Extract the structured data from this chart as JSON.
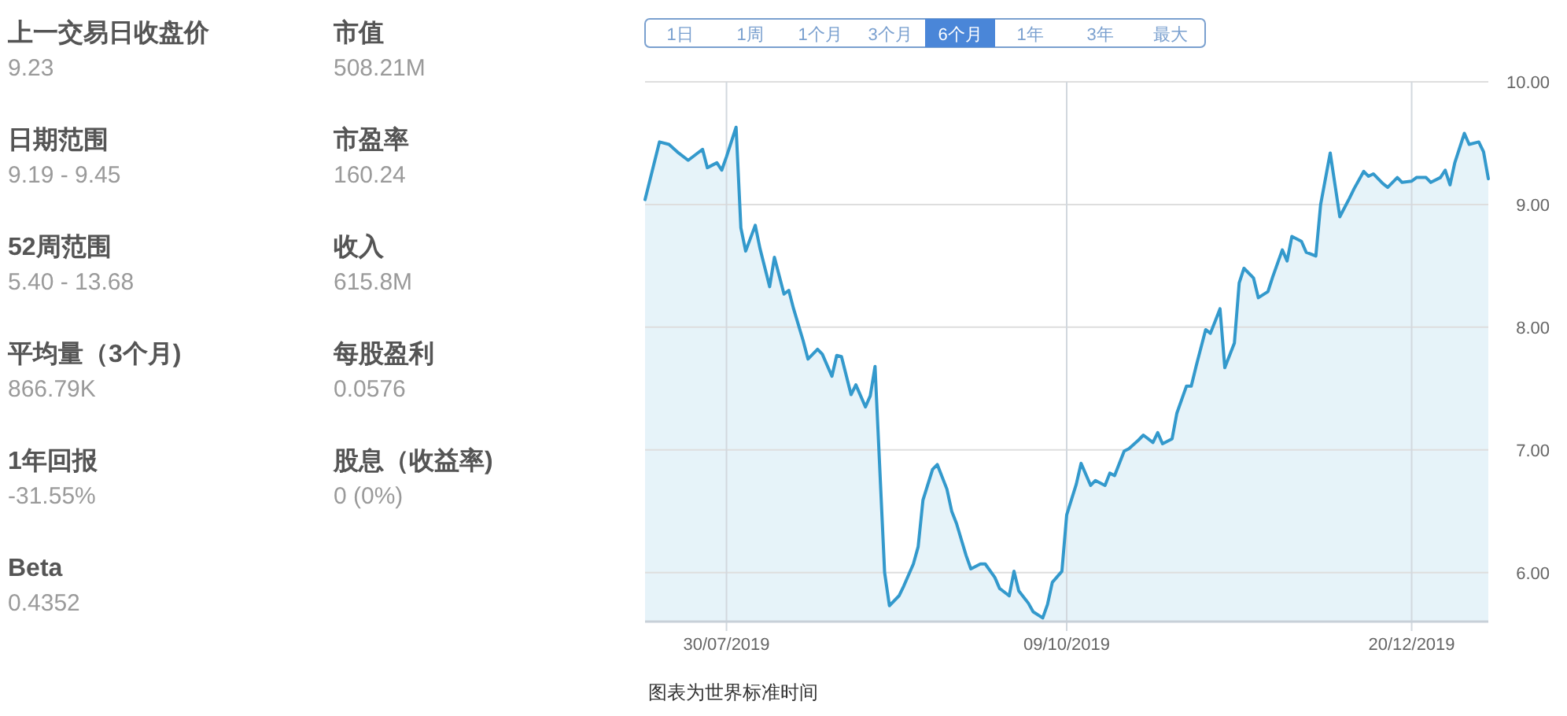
{
  "chart_data": [
    {
      "type": "other",
      "annotations": [
        "上一交易日收盘价",
        "9.23",
        "日期范围",
        "9.19 - 9.45",
        "52周范围",
        "5.40 - 13.68",
        "平均量（3个月)",
        "866.79K",
        "1年回报",
        "-31.55%",
        "Beta",
        "0.4352",
        "市值",
        "508.21M",
        "市盈率",
        "160.24",
        "收入",
        "615.8M",
        "每股盈利",
        "0.0576",
        "股息（收益率)",
        "0 (0%)"
      ]
    },
    {
      "type": "area",
      "grid": true,
      "x": [
        "2019-07-13",
        "2019-07-16",
        "2019-07-18",
        "2019-07-20",
        "2019-07-22",
        "2019-07-25",
        "2019-07-26",
        "2019-07-28",
        "2019-07-29",
        "2019-07-30",
        "2019-08-01",
        "2019-08-02",
        "2019-08-03",
        "2019-08-05",
        "2019-08-06",
        "2019-08-08",
        "2019-08-09",
        "2019-08-11",
        "2019-08-12",
        "2019-08-13",
        "2019-08-15",
        "2019-08-16",
        "2019-08-18",
        "2019-08-19",
        "2019-08-21",
        "2019-08-22",
        "2019-08-23",
        "2019-08-25",
        "2019-08-26",
        "2019-08-28",
        "2019-08-29",
        "2019-08-30",
        "2019-09-01",
        "2019-09-02",
        "2019-09-04",
        "2019-09-05",
        "2019-09-07",
        "2019-09-08",
        "2019-09-09",
        "2019-09-11",
        "2019-09-12",
        "2019-09-14",
        "2019-09-15",
        "2019-09-16",
        "2019-09-18",
        "2019-09-19",
        "2019-09-21",
        "2019-09-22",
        "2019-09-24",
        "2019-09-25",
        "2019-09-27",
        "2019-09-28",
        "2019-09-29",
        "2019-10-01",
        "2019-10-02",
        "2019-10-04",
        "2019-10-05",
        "2019-10-06",
        "2019-10-08",
        "2019-10-09",
        "2019-10-11",
        "2019-10-12",
        "2019-10-14",
        "2019-10-15",
        "2019-10-17",
        "2019-10-18",
        "2019-10-19",
        "2019-10-21",
        "2019-10-22",
        "2019-10-24",
        "2019-10-25",
        "2019-10-27",
        "2019-10-28",
        "2019-10-29",
        "2019-10-31",
        "2019-11-01",
        "2019-11-03",
        "2019-11-04",
        "2019-11-05",
        "2019-11-07",
        "2019-11-08",
        "2019-11-10",
        "2019-11-11",
        "2019-11-13",
        "2019-11-14",
        "2019-11-15",
        "2019-11-17",
        "2019-11-18",
        "2019-11-20",
        "2019-11-21",
        "2019-11-23",
        "2019-11-24",
        "2019-11-25",
        "2019-11-27",
        "2019-11-28",
        "2019-11-30",
        "2019-12-01",
        "2019-12-03",
        "2019-12-04",
        "2019-12-05",
        "2019-12-07",
        "2019-12-08",
        "2019-12-10",
        "2019-12-11",
        "2019-12-12",
        "2019-12-14",
        "2019-12-15",
        "2019-12-17",
        "2019-12-18",
        "2019-12-20",
        "2019-12-21",
        "2019-12-23",
        "2019-12-24",
        "2019-12-26",
        "2019-12-27",
        "2019-12-28",
        "2019-12-29",
        "2019-12-31",
        "2020-01-01",
        "2020-01-03",
        "2020-01-04",
        "2020-01-05"
      ],
      "series": [
        {
          "color": "#3399cc",
          "values": [
            9.04,
            9.51,
            9.49,
            9.42,
            9.36,
            9.45,
            9.3,
            9.34,
            9.28,
            9.39,
            9.63,
            8.81,
            8.62,
            8.83,
            8.64,
            8.33,
            8.57,
            8.27,
            8.3,
            8.15,
            7.89,
            7.74,
            7.82,
            7.78,
            7.6,
            7.77,
            7.76,
            7.45,
            7.53,
            7.35,
            7.44,
            7.68,
            6.0,
            5.73,
            5.81,
            5.89,
            6.07,
            6.21,
            6.59,
            6.84,
            6.88,
            6.68,
            6.5,
            6.4,
            6.14,
            6.03,
            6.07,
            6.07,
            5.96,
            5.87,
            5.81,
            6.01,
            5.85,
            5.75,
            5.68,
            5.63,
            5.74,
            5.92,
            6.01,
            6.47,
            6.72,
            6.89,
            6.71,
            6.75,
            6.71,
            6.81,
            6.79,
            6.99,
            7.01,
            7.08,
            7.12,
            7.06,
            7.14,
            7.05,
            7.09,
            7.3,
            7.52,
            7.52,
            7.68,
            7.98,
            7.95,
            8.15,
            7.67,
            7.87,
            8.36,
            8.48,
            8.4,
            8.24,
            8.29,
            8.41,
            8.63,
            8.54,
            8.74,
            8.7,
            8.61,
            8.58,
            9.0,
            9.42,
            9.16,
            8.9,
            9.05,
            9.13,
            9.27,
            9.23,
            9.25,
            9.17,
            9.14,
            9.22,
            9.18,
            9.19,
            9.22,
            9.22,
            9.18,
            9.22,
            9.28,
            9.16,
            9.34,
            9.58,
            9.49,
            9.51,
            9.43,
            9.21
          ]
        }
      ],
      "xlim": [
        "2019-07-13",
        "2020-01-05"
      ],
      "xticks": [
        {
          "value": "2019-07-30",
          "label": "30/07/2019"
        },
        {
          "value": "2019-10-09",
          "label": "09/10/2019"
        },
        {
          "value": "2019-12-20",
          "label": "20/12/2019"
        }
      ],
      "ylim": [
        5.6,
        10.0
      ],
      "yticks": [
        {
          "value": 6,
          "label": "6.00"
        },
        {
          "value": 7,
          "label": "7.00"
        },
        {
          "value": 8,
          "label": "8.00"
        },
        {
          "value": 9,
          "label": "9.00"
        },
        {
          "value": 10,
          "label": "10.00"
        }
      ],
      "annotations": [
        "1日",
        "1周",
        "1个月",
        "3个月",
        "6个月",
        "1年",
        "3年",
        "最大",
        "图表为世界标准时间"
      ]
    }
  ]
}
